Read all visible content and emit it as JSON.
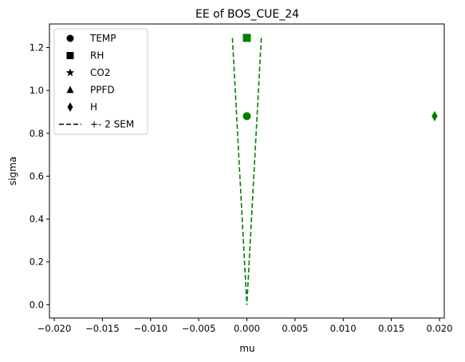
{
  "chart_data": {
    "type": "scatter",
    "title": "EE of BOS_CUE_24",
    "xlabel": "mu",
    "ylabel": "sigma",
    "xlim": [
      -0.0205,
      0.0205
    ],
    "ylim": [
      -0.062,
      1.31
    ],
    "x_ticks": [
      -0.02,
      -0.015,
      -0.01,
      -0.005,
      0.0,
      0.005,
      0.01,
      0.015,
      0.02
    ],
    "x_tick_labels": [
      "−0.020",
      "−0.015",
      "−0.010",
      "−0.005",
      "0.000",
      "0.005",
      "0.010",
      "0.015",
      "0.020"
    ],
    "y_ticks": [
      0.0,
      0.2,
      0.4,
      0.6,
      0.8,
      1.0,
      1.2
    ],
    "y_tick_labels": [
      "0.0",
      "0.2",
      "0.4",
      "0.6",
      "0.8",
      "1.0",
      "1.2"
    ],
    "grid": false,
    "legend_position": "top-left",
    "marker_color": "#008000",
    "legend_color": "#000000",
    "series": [
      {
        "name": "TEMP",
        "marker": "circle",
        "points": [
          {
            "x": 0.0,
            "y": 0.88
          }
        ]
      },
      {
        "name": "RH",
        "marker": "square",
        "points": [
          {
            "x": 0.0,
            "y": 1.245
          }
        ]
      },
      {
        "name": "CO2",
        "marker": "star",
        "points": []
      },
      {
        "name": "PPFD",
        "marker": "triangle",
        "points": []
      },
      {
        "name": "H",
        "marker": "diamond",
        "points": [
          {
            "x": 0.0195,
            "y": 0.88
          }
        ]
      }
    ],
    "sem_line": {
      "name": "+- 2 SEM",
      "style": "dashed",
      "color": "#008000",
      "left": [
        {
          "x": -0.0015,
          "y": 1.245
        },
        {
          "x": 0.0,
          "y": 0.0
        }
      ],
      "right": [
        {
          "x": 0.0015,
          "y": 1.245
        },
        {
          "x": 0.0,
          "y": 0.0
        }
      ]
    }
  }
}
